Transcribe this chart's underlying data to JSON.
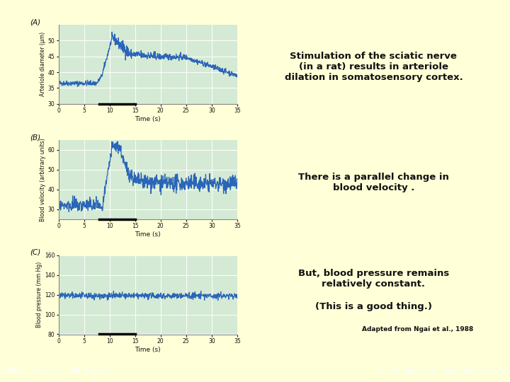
{
  "bg_color": "#ffffd8",
  "plot_bg_color": "#d4ead4",
  "line_color": "#2a65b8",
  "grid_color": "#ffffff",
  "text_color": "#111111",
  "panel_label_color": "#111111",
  "footer_bar_color": "#8888cc",
  "footer_text_color": "#ffffff",
  "panel_a_label": "(A)",
  "panel_b_label": "(B)",
  "panel_c_label": "(C)",
  "text_right_1": "Stimulation of the sciatic nerve\n(in a rat) results in arteriole\ndilation in somatosensory cortex.",
  "text_right_2": "There is a parallel change in\nblood velocity .",
  "text_right_3a": "But, blood pressure remains\nrelatively constant.",
  "text_right_3b": "(This is a good thing.)",
  "xlabel": "Time (s)",
  "ylabel_a": "Arteriole diameter (μm)",
  "ylabel_b": "Blood velocity (arbitrary units)",
  "ylabel_c": "Blood pressure (mm Hg)",
  "xlim": [
    0,
    35
  ],
  "ylim_a": [
    30,
    55
  ],
  "ylim_b": [
    25,
    65
  ],
  "ylim_c": [
    80,
    160
  ],
  "xticks": [
    0,
    5,
    10,
    15,
    20,
    25,
    30,
    35
  ],
  "yticks_a": [
    30,
    35,
    40,
    45,
    50
  ],
  "yticks_b": [
    30,
    40,
    50,
    60
  ],
  "yticks_c": [
    80,
    100,
    120,
    140,
    160
  ],
  "footer_left": "FMRI – Week 5 – MR Signal",
  "footer_right": "Scott Huettel, Duke University",
  "footer_source": "Adapted from Ngai et al., 1988"
}
